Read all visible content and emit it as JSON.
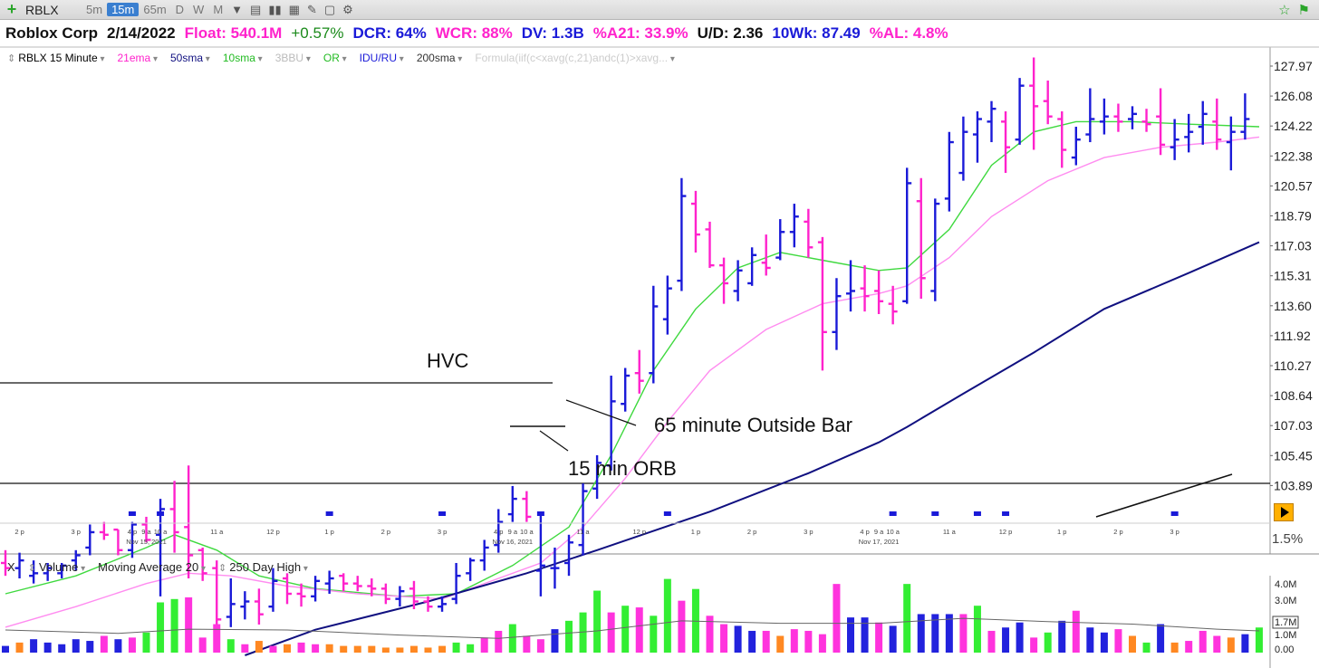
{
  "toolbar": {
    "symbol": "RBLX",
    "timeframes": [
      "5m",
      "15m",
      "65m",
      "D",
      "W",
      "M"
    ],
    "active_timeframe": "15m"
  },
  "info": {
    "company": "Roblox Corp",
    "date": "2/14/2022",
    "float": "Float: 540.1M",
    "change": "+0.57%",
    "dcr": "DCR: 64%",
    "wcr": "WCR: 88%",
    "dv": "DV: 1.3B",
    "a21": "%A21: 33.9%",
    "ud": "U/D: 2.36",
    "wk10": "10Wk: 87.49",
    "al": "%AL: 4.8%"
  },
  "legend": {
    "chart": "RBLX 15 Minute",
    "ema21": "21ema",
    "sma50": "50sma",
    "sma10": "10sma",
    "bbu": "3BBU",
    "or": "OR",
    "idu": "IDU/RU",
    "sma200": "200sma",
    "formula": "Formula(iif(c<xavg(c,21)andc(1)>xavg..."
  },
  "volume_legend": {
    "close": "X",
    "volume": "Volume",
    "ma": "Moving Average 20",
    "high": "250 Day High"
  },
  "annotations": {
    "hvc": "HVC",
    "outside_bar": "65 minute Outside Bar",
    "orb": "15 min ORB"
  },
  "colors": {
    "up": "#1a1ad8",
    "down": "#ff22cc",
    "sma10": "#3fd93f",
    "ema21": "#ff8cf0",
    "sma50": "#101080",
    "vol_green": "#33ee33",
    "vol_magenta": "#ff33dd",
    "vol_blue": "#2222dd",
    "vol_orange": "#ff8822"
  },
  "bottom_right_pct": "1.5%",
  "chart_data": [
    {
      "type": "ohlc",
      "title": "RBLX 15 Minute",
      "ylim": [
        103.0,
        129.0
      ],
      "y_ticks": [
        "127.97",
        "126.08",
        "124.22",
        "122.38",
        "120.57",
        "118.79",
        "117.03",
        "115.31",
        "113.60",
        "111.92",
        "110.27",
        "108.64",
        "107.03",
        "105.45",
        "103.89"
      ],
      "x_tick_labels": [
        {
          "i": 1,
          "t": "2 p"
        },
        {
          "i": 5,
          "t": "3 p"
        },
        {
          "i": 9,
          "t": "4 p"
        },
        {
          "i": 10,
          "t": "9 a"
        },
        {
          "i": 11,
          "t": "10 a"
        },
        {
          "i": 15,
          "t": "11 a"
        },
        {
          "i": 19,
          "t": "12 p"
        },
        {
          "i": 23,
          "t": "1 p"
        },
        {
          "i": 27,
          "t": "2 p"
        },
        {
          "i": 31,
          "t": "3 p"
        },
        {
          "i": 35,
          "t": "4 p"
        },
        {
          "i": 36,
          "t": "9 a"
        },
        {
          "i": 37,
          "t": "10 a"
        },
        {
          "i": 41,
          "t": "11 a"
        },
        {
          "i": 45,
          "t": "12 p"
        },
        {
          "i": 49,
          "t": "1 p"
        },
        {
          "i": 53,
          "t": "2 p"
        },
        {
          "i": 57,
          "t": "3 p"
        },
        {
          "i": 61,
          "t": "4 p"
        },
        {
          "i": 62,
          "t": "9 a"
        },
        {
          "i": 63,
          "t": "10 a"
        },
        {
          "i": 67,
          "t": "11 a"
        },
        {
          "i": 71,
          "t": "12 p"
        },
        {
          "i": 75,
          "t": "1 p"
        },
        {
          "i": 79,
          "t": "2 p"
        },
        {
          "i": 83,
          "t": "3 p"
        }
      ],
      "date_labels": [
        {
          "i": 10,
          "t": "Nov 15, 2021"
        },
        {
          "i": 36,
          "t": "Nov 16, 2021"
        },
        {
          "i": 62,
          "t": "Nov 17, 2021"
        }
      ],
      "bars": [
        [
          106.8,
          107.3,
          106.3,
          106.6
        ],
        [
          106.6,
          107.2,
          106.2,
          106.9
        ],
        [
          106.3,
          106.9,
          106.0,
          106.4
        ],
        [
          106.4,
          106.8,
          106.1,
          106.6
        ],
        [
          106.4,
          106.8,
          106.2,
          106.7
        ],
        [
          106.9,
          107.3,
          106.5,
          107.1
        ],
        [
          107.4,
          108.3,
          107.1,
          108.0
        ],
        [
          108.0,
          108.4,
          107.7,
          107.9
        ],
        [
          108.1,
          108.1,
          107.1,
          107.3
        ],
        [
          107.3,
          108.4,
          107.0,
          108.3
        ],
        [
          108.3,
          108.6,
          107.6,
          107.7
        ],
        [
          107.9,
          109.3,
          105.5,
          108.9
        ],
        [
          108.9,
          110.0,
          107.2,
          108.0
        ],
        [
          108.2,
          110.6,
          106.2,
          107.1
        ],
        [
          107.3,
          107.4,
          106.1,
          106.4
        ],
        [
          106.6,
          106.9,
          104.3,
          104.6
        ],
        [
          104.7,
          106.2,
          104.3,
          105.2
        ],
        [
          105.1,
          105.7,
          104.6,
          105.3
        ],
        [
          105.3,
          105.8,
          104.4,
          104.8
        ],
        [
          105.1,
          106.6,
          104.9,
          106.1
        ],
        [
          106.2,
          106.4,
          105.2,
          105.6
        ],
        [
          105.6,
          106.0,
          105.1,
          105.5
        ],
        [
          105.5,
          106.3,
          105.3,
          106.1
        ],
        [
          106.0,
          106.5,
          105.6,
          106.2
        ],
        [
          106.3,
          106.4,
          105.7,
          106.0
        ],
        [
          106.0,
          106.3,
          105.7,
          105.9
        ],
        [
          105.9,
          106.2,
          105.5,
          105.8
        ],
        [
          105.8,
          106.0,
          105.2,
          105.4
        ],
        [
          105.4,
          105.9,
          105.1,
          105.7
        ],
        [
          105.8,
          106.1,
          105.0,
          105.3
        ],
        [
          105.3,
          105.5,
          104.9,
          105.1
        ],
        [
          105.1,
          105.5,
          104.9,
          105.2
        ],
        [
          105.4,
          106.8,
          105.2,
          106.3
        ],
        [
          106.4,
          107.0,
          106.1,
          106.9
        ],
        [
          106.9,
          107.7,
          106.5,
          107.4
        ],
        [
          107.5,
          108.9,
          107.2,
          108.4
        ],
        [
          108.7,
          109.8,
          108.4,
          109.3
        ],
        [
          109.3,
          109.6,
          108.4,
          108.6
        ],
        [
          106.5,
          108.8,
          105.5,
          106.7
        ],
        [
          106.6,
          107.4,
          105.8,
          106.6
        ],
        [
          106.8,
          107.9,
          106.3,
          107.6
        ],
        [
          107.5,
          109.9,
          107.1,
          109.6
        ],
        [
          109.7,
          111.0,
          109.3,
          110.7
        ],
        [
          110.6,
          114.1,
          110.4,
          113.1
        ],
        [
          113.0,
          114.4,
          112.7,
          114.1
        ],
        [
          114.2,
          115.1,
          113.4,
          113.9
        ],
        [
          114.2,
          117.6,
          113.8,
          116.8
        ],
        [
          116.3,
          118.0,
          115.7,
          117.5
        ],
        [
          117.8,
          121.8,
          117.4,
          121.1
        ],
        [
          120.8,
          121.3,
          118.9,
          119.6
        ],
        [
          119.8,
          120.1,
          118.3,
          118.4
        ],
        [
          118.4,
          118.7,
          116.9,
          117.7
        ],
        [
          117.4,
          118.6,
          117.0,
          118.2
        ],
        [
          117.7,
          119.1,
          117.6,
          118.8
        ],
        [
          118.5,
          119.6,
          118.0,
          118.3
        ],
        [
          118.7,
          120.2,
          118.6,
          119.7
        ],
        [
          119.7,
          120.8,
          119.1,
          120.3
        ],
        [
          120.1,
          120.6,
          118.7,
          119.1
        ],
        [
          119.3,
          119.5,
          114.3,
          115.8
        ],
        [
          115.8,
          117.9,
          115.1,
          117.2
        ],
        [
          117.3,
          118.6,
          116.6,
          117.4
        ],
        [
          117.5,
          118.4,
          116.6,
          117.2
        ],
        [
          117.4,
          118.2,
          116.5,
          117.0
        ],
        [
          116.9,
          117.6,
          116.1,
          116.6
        ],
        [
          117.0,
          122.2,
          116.9,
          121.6
        ],
        [
          120.9,
          121.8,
          117.1,
          117.9
        ],
        [
          117.4,
          121.0,
          117.0,
          120.8
        ],
        [
          121.0,
          123.6,
          120.5,
          123.2
        ],
        [
          122.0,
          124.2,
          121.7,
          123.6
        ],
        [
          123.5,
          124.4,
          122.4,
          124.1
        ],
        [
          124.0,
          124.8,
          123.2,
          124.5
        ],
        [
          124.0,
          124.4,
          122.0,
          123.0
        ],
        [
          123.3,
          125.7,
          123.1,
          125.4
        ],
        [
          125.4,
          126.5,
          122.9,
          124.6
        ],
        [
          124.8,
          125.6,
          123.9,
          124.2
        ],
        [
          124.1,
          124.4,
          122.2,
          122.9
        ],
        [
          122.6,
          123.8,
          122.3,
          123.3
        ],
        [
          123.5,
          125.3,
          123.2,
          124.1
        ],
        [
          124.0,
          124.9,
          123.5,
          124.2
        ],
        [
          124.2,
          124.7,
          123.6,
          124.0
        ],
        [
          124.1,
          124.6,
          123.7,
          124.3
        ],
        [
          124.0,
          124.5,
          123.6,
          123.9
        ],
        [
          124.2,
          125.3,
          122.7,
          123.1
        ],
        [
          123.0,
          124.1,
          122.5,
          123.3
        ],
        [
          123.4,
          124.3,
          122.8,
          123.6
        ],
        [
          123.8,
          124.8,
          123.1,
          124.3
        ],
        [
          124.0,
          124.9,
          122.9,
          123.3
        ],
        [
          123.2,
          124.2,
          122.1,
          123.6
        ],
        [
          123.6,
          125.1,
          123.3,
          124.1
        ]
      ],
      "series": [
        {
          "name": "10sma",
          "points": [
            [
              0,
              105.6
            ],
            [
              5,
              106.3
            ],
            [
              10,
              107.4
            ],
            [
              12,
              107.9
            ],
            [
              15,
              107.3
            ],
            [
              18,
              106.3
            ],
            [
              22,
              105.8
            ],
            [
              28,
              105.5
            ],
            [
              32,
              105.6
            ],
            [
              36,
              106.7
            ],
            [
              40,
              108.2
            ],
            [
              43,
              111.0
            ],
            [
              46,
              114.3
            ],
            [
              49,
              116.7
            ],
            [
              52,
              118.3
            ],
            [
              55,
              118.9
            ],
            [
              58,
              118.6
            ],
            [
              62,
              118.2
            ],
            [
              64,
              118.3
            ],
            [
              67,
              119.8
            ],
            [
              70,
              122.3
            ],
            [
              73,
              123.6
            ],
            [
              76,
              124.0
            ],
            [
              80,
              124.0
            ],
            [
              84,
              123.9
            ],
            [
              89,
              123.8
            ]
          ]
        },
        {
          "name": "21ema",
          "points": [
            [
              0,
              104.3
            ],
            [
              5,
              105.1
            ],
            [
              10,
              106.0
            ],
            [
              13,
              106.4
            ],
            [
              16,
              106.3
            ],
            [
              20,
              105.9
            ],
            [
              25,
              105.6
            ],
            [
              31,
              105.4
            ],
            [
              35,
              106.2
            ],
            [
              38,
              106.8
            ],
            [
              41,
              108.2
            ],
            [
              44,
              110.1
            ],
            [
              47,
              112.3
            ],
            [
              50,
              114.3
            ],
            [
              54,
              115.9
            ],
            [
              58,
              116.9
            ],
            [
              62,
              117.3
            ],
            [
              64,
              117.6
            ],
            [
              67,
              118.7
            ],
            [
              70,
              120.3
            ],
            [
              74,
              121.7
            ],
            [
              78,
              122.6
            ],
            [
              82,
              123.0
            ],
            [
              86,
              123.2
            ],
            [
              89,
              123.4
            ]
          ]
        },
        {
          "name": "50sma",
          "points": [
            [
              17,
              103.2
            ],
            [
              22,
              104.2
            ],
            [
              30,
              105.3
            ],
            [
              37,
              106.4
            ],
            [
              42,
              107.3
            ],
            [
              50,
              108.8
            ],
            [
              57,
              110.3
            ],
            [
              62,
              111.5
            ],
            [
              64,
              112.1
            ],
            [
              68,
              113.4
            ],
            [
              73,
              115.0
            ],
            [
              78,
              116.7
            ],
            [
              84,
              118.1
            ],
            [
              89,
              119.3
            ]
          ]
        }
      ],
      "horizontal_levels": [
        {
          "value": 110.0,
          "label": "HVC"
        },
        {
          "value": 103.9,
          "label": ""
        }
      ]
    },
    {
      "type": "bar",
      "title": "Volume",
      "y_ticks": [
        "4.0M",
        "3.0M",
        "1.7M",
        "1.0M",
        "0.00"
      ],
      "ylim": [
        0,
        4.5
      ],
      "values": [
        0.4,
        0.6,
        0.8,
        0.6,
        0.5,
        0.8,
        0.7,
        1.0,
        0.8,
        0.9,
        1.2,
        3.0,
        3.2,
        3.3,
        0.9,
        1.7,
        0.8,
        0.5,
        0.7,
        0.4,
        0.5,
        0.6,
        0.5,
        0.5,
        0.4,
        0.4,
        0.4,
        0.3,
        0.3,
        0.4,
        0.3,
        0.4,
        0.6,
        0.5,
        0.9,
        1.3,
        1.7,
        1.0,
        0.8,
        1.4,
        1.9,
        2.4,
        3.7,
        2.4,
        2.8,
        2.7,
        2.2,
        4.4,
        3.1,
        3.8,
        2.2,
        1.7,
        1.6,
        1.3,
        1.3,
        1.0,
        1.4,
        1.3,
        1.1,
        4.1,
        2.1,
        2.1,
        1.8,
        1.6,
        4.1,
        2.3,
        2.3,
        2.3,
        2.3,
        2.8,
        1.3,
        1.5,
        1.8,
        0.9,
        1.2,
        1.9,
        2.5,
        1.5,
        1.2,
        1.4,
        1.0,
        0.6,
        1.7,
        0.6,
        0.7,
        1.3,
        1.0,
        0.9,
        1.1,
        1.5
      ],
      "colors": [
        "b",
        "o",
        "b",
        "b",
        "b",
        "b",
        "b",
        "m",
        "b",
        "m",
        "g",
        "g",
        "g",
        "m",
        "m",
        "m",
        "g",
        "m",
        "o",
        "m",
        "o",
        "m",
        "m",
        "o",
        "o",
        "o",
        "o",
        "o",
        "o",
        "o",
        "o",
        "o",
        "g",
        "g",
        "m",
        "m",
        "g",
        "m",
        "m",
        "b",
        "g",
        "g",
        "g",
        "m",
        "g",
        "m",
        "g",
        "g",
        "m",
        "g",
        "m",
        "m",
        "b",
        "b",
        "m",
        "o",
        "m",
        "m",
        "m",
        "m",
        "b",
        "b",
        "m",
        "b",
        "g",
        "b",
        "b",
        "b",
        "m",
        "g",
        "m",
        "b",
        "b",
        "m",
        "g",
        "b",
        "m",
        "b",
        "b",
        "m",
        "o",
        "g",
        "b",
        "o",
        "m",
        "m",
        "m",
        "o",
        "b",
        "g"
      ],
      "ma_points": [
        [
          0,
          1.35
        ],
        [
          8,
          1.15
        ],
        [
          13,
          1.4
        ],
        [
          20,
          1.35
        ],
        [
          28,
          1.05
        ],
        [
          35,
          0.85
        ],
        [
          42,
          1.3
        ],
        [
          48,
          1.9
        ],
        [
          55,
          1.75
        ],
        [
          62,
          1.75
        ],
        [
          68,
          2.05
        ],
        [
          74,
          1.85
        ],
        [
          80,
          1.7
        ],
        [
          86,
          1.4
        ],
        [
          89,
          1.3
        ]
      ]
    }
  ]
}
